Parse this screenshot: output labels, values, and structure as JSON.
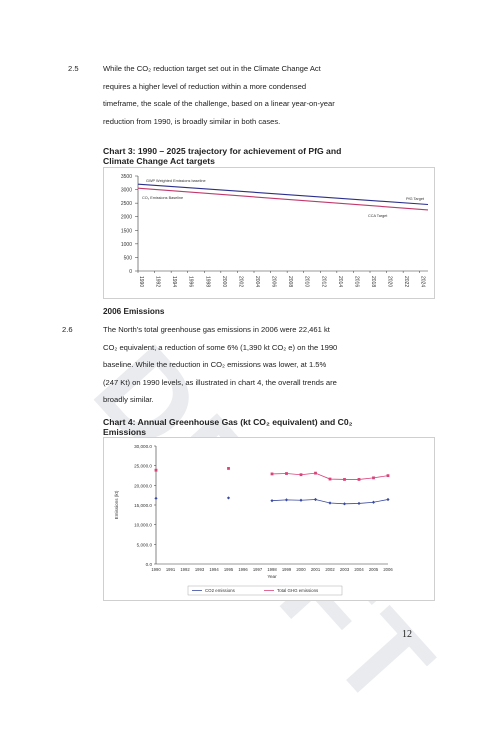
{
  "watermark": "DRAFT",
  "sections": {
    "s25_num": "2.5",
    "s25_lines": [
      "While the CO₂ reduction target set out in the Climate Change Act",
      "requires a higher level of reduction within a more condensed",
      "timeframe, the scale of the challenge, based on a linear year-on-year",
      "reduction from 1990, is broadly similar in both cases."
    ],
    "chart3_title_lines": [
      "Chart 3: 1990 – 2025 trajectory for achievement of PfG and",
      "Climate Change Act targets"
    ],
    "emissions_heading": "2006 Emissions",
    "s26_num": "2.6",
    "s26_lines": [
      "The North's total greenhouse gas emissions in 2006 were 22,461 kt",
      "CO₂ equivalent, a reduction of some 6% (1,390 kt CO₂ e) on the 1990",
      "baseline. While the reduction in CO₂ emissions was lower, at 1.5%",
      "(247 Kt) on 1990 levels, as illustrated in chart 4, the overall trends are",
      "broadly similar."
    ],
    "chart4_title_lines": [
      "Chart 4: Annual Greenhouse Gas (kt CO₂ equivalent) and C0₂",
      "Emissions"
    ],
    "page_number": "12"
  },
  "chart_data": [
    {
      "type": "line",
      "title": "Chart 3: 1990 – 2025 trajectory for achievement of PfG and Climate Change Act targets",
      "ylim": [
        0,
        3500
      ],
      "yticks": [
        0,
        500,
        1000,
        1500,
        2000,
        2500,
        3000,
        3500
      ],
      "x": [
        1990,
        1992,
        1994,
        1996,
        1998,
        2000,
        2002,
        2004,
        2006,
        2008,
        2010,
        2012,
        2014,
        2016,
        2018,
        2020,
        2022,
        2024
      ],
      "xticks": [
        "1990",
        "1992",
        "1994",
        "1996",
        "1998",
        "2000",
        "2002",
        "2004",
        "2006",
        "2008",
        "2010",
        "2012",
        "2014",
        "2016",
        "2018",
        "2020",
        "2022",
        "2024"
      ],
      "annotations": [
        "GWP Weighted Emissions baseline",
        "CO₂ Emissions Baseline",
        "PfG Target",
        "CCA Target"
      ],
      "series": [
        {
          "name": "PfG Target",
          "color": "#2b2f8c",
          "points": [
            [
              1990,
              3200
            ],
            [
              2025,
              2450
            ]
          ]
        },
        {
          "name": "CCA Target",
          "color": "#c0396b",
          "points": [
            [
              1990,
              3050
            ],
            [
              2025,
              2250
            ]
          ]
        }
      ],
      "grid": false
    },
    {
      "type": "line",
      "title": "Chart 4: Annual Greenhouse Gas (kt CO₂ equivalent) and C0₂ Emissions",
      "ylabel": "Emissions (kt)",
      "xlabel": "Year",
      "ylim": [
        0,
        30000
      ],
      "yticks": [
        "0.0",
        "5,000.0",
        "10,000.0",
        "15,000.0",
        "20,000.0",
        "25,000.0",
        "30,000.0"
      ],
      "x": [
        1990,
        1991,
        1992,
        1993,
        1994,
        1995,
        1996,
        1997,
        1998,
        1999,
        2000,
        2001,
        2002,
        2003,
        2004,
        2005,
        2006
      ],
      "series": [
        {
          "name": "CO2 emissions",
          "color": "#3a4aa0",
          "values": [
            16700,
            null,
            null,
            null,
            null,
            16800,
            null,
            null,
            16100,
            16300,
            16200,
            16400,
            15500,
            15300,
            15400,
            15700,
            16400
          ]
        },
        {
          "name": "Total GHG emissions",
          "color": "#d9437a",
          "values": [
            23850,
            null,
            null,
            null,
            null,
            24300,
            null,
            null,
            22900,
            23000,
            22700,
            23100,
            21600,
            21500,
            21500,
            21900,
            22461
          ]
        }
      ],
      "legend": "bottom",
      "grid": false
    }
  ]
}
